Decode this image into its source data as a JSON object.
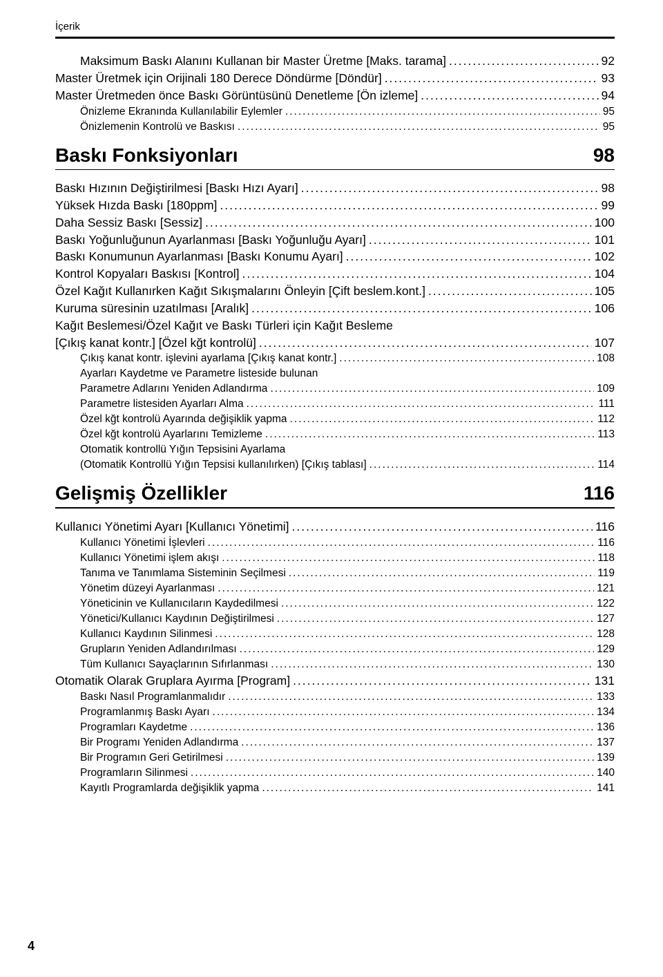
{
  "page": {
    "header_label": "İçerik",
    "page_number": "4"
  },
  "prelude": {
    "items": [
      {
        "label": "Maksimum Baskı Alanını Kullanan bir Master Üretme [Maks. tarama]",
        "page": "92",
        "indent": 1
      },
      {
        "label": "Master Üretmek için Orijinali 180 Derece Döndürme [Döndür]",
        "page": "93",
        "indent": 0
      },
      {
        "label": "Master Üretmeden önce Baskı Görüntüsünü Denetleme [Ön izleme]",
        "page": "94",
        "indent": 0
      },
      {
        "label": "Önizleme Ekranında Kullanılabilir Eylemler",
        "page": "95",
        "indent": 1,
        "sub": true
      },
      {
        "label": "Önizlemenin Kontrolü ve Baskısı",
        "page": "95",
        "indent": 1,
        "sub": true
      }
    ]
  },
  "section1": {
    "title": "Baskı Fonksiyonları",
    "page": "98",
    "items": [
      {
        "label": "Baskı Hızının Değiştirilmesi [Baskı Hızı Ayarı]",
        "page": "98",
        "indent": 0
      },
      {
        "label": "Yüksek Hızda Baskı [180ppm]",
        "page": "99",
        "indent": 0
      },
      {
        "label": "Daha Sessiz Baskı [Sessiz]",
        "page": "100",
        "indent": 0
      },
      {
        "label": "Baskı Yoğunluğunun Ayarlanması [Baskı Yoğunluğu Ayarı]",
        "page": "101",
        "indent": 0
      },
      {
        "label": "Baskı Konumunun Ayarlanması [Baskı Konumu Ayarı]",
        "page": "102",
        "indent": 0
      },
      {
        "label": "Kontrol Kopyaları Baskısı [Kontrol]",
        "page": "104",
        "indent": 0
      },
      {
        "label": "Özel Kağıt Kullanırken Kağıt Sıkışmalarını Önleyin [Çift beslem.kont.]",
        "page": "105",
        "indent": 0
      },
      {
        "label": "Kuruma süresinin uzatılması [Aralık]",
        "page": "106",
        "indent": 0
      },
      {
        "label": "Kağıt Beslemesi/Özel Kağıt ve Baskı Türleri için Kağıt Besleme",
        "indent": 0,
        "nodots": true
      },
      {
        "label": "[Çıkış kanat kontr.] [Özel kğt kontrolü]",
        "page": "107",
        "indent": 0
      },
      {
        "label": "Çıkış kanat kontr. işlevini ayarlama [Çıkış kanat kontr.]",
        "page": "108",
        "indent": 1,
        "sub": true
      },
      {
        "label": "Ayarları Kaydetme ve Parametre listeside bulunan",
        "indent": 1,
        "sub": true,
        "nodots": true
      },
      {
        "label": "Parametre Adlarını Yeniden Adlandırma",
        "page": "109",
        "indent": 1,
        "sub": true
      },
      {
        "label": "Parametre listesiden Ayarları Alma",
        "page": "111",
        "indent": 1,
        "sub": true
      },
      {
        "label": "Özel kğt kontrolü Ayarında değişiklik yapma",
        "page": "112",
        "indent": 1,
        "sub": true
      },
      {
        "label": "Özel kğt kontrolü Ayarlarını Temizleme",
        "page": "113",
        "indent": 1,
        "sub": true
      },
      {
        "label": "Otomatik kontrollü Yığın Tepsisini Ayarlama",
        "indent": 1,
        "sub": true,
        "nodots": true
      },
      {
        "label": " (Otomatik Kontrollü Yığın Tepsisi kullanılırken) [Çıkış tablası]",
        "page": "114",
        "indent": 1,
        "sub": true
      }
    ]
  },
  "section2": {
    "title": "Gelişmiş Özellikler",
    "page": "116",
    "items": [
      {
        "label": "Kullanıcı Yönetimi Ayarı [Kullanıcı Yönetimi]",
        "page": "116",
        "indent": 0
      },
      {
        "label": "Kullanıcı Yönetimi İşlevleri",
        "page": "116",
        "indent": 1,
        "sub": true
      },
      {
        "label": "Kullanıcı Yönetimi işlem akışı",
        "page": "118",
        "indent": 1,
        "sub": true
      },
      {
        "label": "Tanıma ve Tanımlama Sisteminin Seçilmesi",
        "page": "119",
        "indent": 1,
        "sub": true
      },
      {
        "label": "Yönetim düzeyi Ayarlanması",
        "page": "121",
        "indent": 1,
        "sub": true
      },
      {
        "label": "Yöneticinin ve Kullanıcıların Kaydedilmesi",
        "page": "122",
        "indent": 1,
        "sub": true
      },
      {
        "label": "Yönetici/Kullanıcı Kaydının Değiştirilmesi",
        "page": "127",
        "indent": 1,
        "sub": true
      },
      {
        "label": "Kullanıcı Kaydının Silinmesi",
        "page": "128",
        "indent": 1,
        "sub": true
      },
      {
        "label": "Grupların Yeniden Adlandırılması",
        "page": "129",
        "indent": 1,
        "sub": true
      },
      {
        "label": "Tüm Kullanıcı Sayaçlarının Sıfırlanması",
        "page": "130",
        "indent": 1,
        "sub": true
      },
      {
        "label": "Otomatik Olarak Gruplara Ayırma [Program] ",
        "page": "131",
        "indent": 0
      },
      {
        "label": "Baskı Nasıl Programlanmalıdır",
        "page": "133",
        "indent": 1,
        "sub": true
      },
      {
        "label": "Programlanmış Baskı Ayarı",
        "page": "134",
        "indent": 1,
        "sub": true
      },
      {
        "label": "Programları Kaydetme",
        "page": "136",
        "indent": 1,
        "sub": true
      },
      {
        "label": "Bir Programı Yeniden Adlandırma",
        "page": "137",
        "indent": 1,
        "sub": true
      },
      {
        "label": "Bir Programın Geri Getirilmesi",
        "page": "139",
        "indent": 1,
        "sub": true
      },
      {
        "label": "Programların Silinmesi",
        "page": "140",
        "indent": 1,
        "sub": true
      },
      {
        "label": "Kayıtlı Programlarda değişiklik yapma",
        "page": "141",
        "indent": 1,
        "sub": true
      }
    ]
  }
}
